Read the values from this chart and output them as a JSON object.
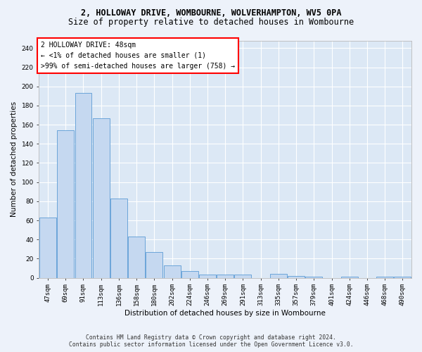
{
  "title_line1": "2, HOLLOWAY DRIVE, WOMBOURNE, WOLVERHAMPTON, WV5 0PA",
  "title_line2": "Size of property relative to detached houses in Wombourne",
  "xlabel": "Distribution of detached houses by size in Wombourne",
  "ylabel": "Number of detached properties",
  "categories": [
    "47sqm",
    "69sqm",
    "91sqm",
    "113sqm",
    "136sqm",
    "158sqm",
    "180sqm",
    "202sqm",
    "224sqm",
    "246sqm",
    "269sqm",
    "291sqm",
    "313sqm",
    "335sqm",
    "357sqm",
    "379sqm",
    "401sqm",
    "424sqm",
    "446sqm",
    "468sqm",
    "490sqm"
  ],
  "values": [
    63,
    154,
    193,
    167,
    83,
    43,
    27,
    13,
    7,
    3,
    3,
    3,
    0,
    4,
    2,
    1,
    0,
    1,
    0,
    1,
    1
  ],
  "bar_color": "#c5d8f0",
  "bar_edge_color": "#5b9bd5",
  "highlight_bar_index": 0,
  "annotation_line1": "2 HOLLOWAY DRIVE: 48sqm",
  "annotation_line2": "← <1% of detached houses are smaller (1)",
  "annotation_line3": ">99% of semi-detached houses are larger (758) →",
  "ylim": [
    0,
    248
  ],
  "yticks": [
    0,
    20,
    40,
    60,
    80,
    100,
    120,
    140,
    160,
    180,
    200,
    220,
    240
  ],
  "footer_line1": "Contains HM Land Registry data © Crown copyright and database right 2024.",
  "footer_line2": "Contains public sector information licensed under the Open Government Licence v3.0.",
  "bg_color": "#edf2fa",
  "plot_bg_color": "#dce8f5",
  "grid_color": "#ffffff",
  "title_fontsize": 8.5,
  "subtitle_fontsize": 8.5,
  "tick_fontsize": 6.5,
  "ylabel_fontsize": 7.5,
  "xlabel_fontsize": 7.5,
  "annot_fontsize": 7.0,
  "footer_fontsize": 5.8
}
